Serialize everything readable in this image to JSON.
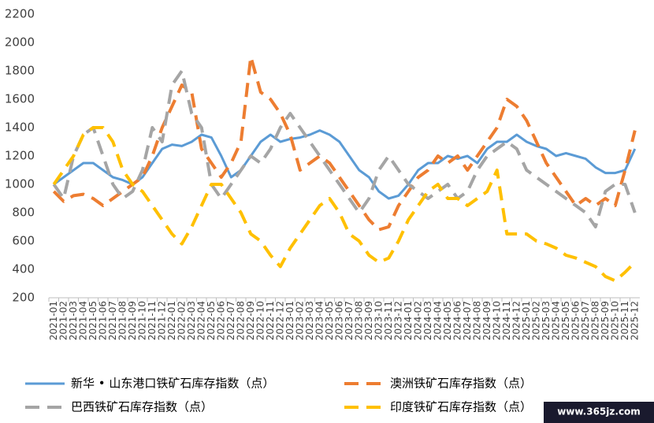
{
  "chart_data": {
    "type": "line",
    "categories": [
      "2021-01",
      "2021-02",
      "2021-03",
      "2021-04",
      "2021-05",
      "2021-06",
      "2021-07",
      "2021-08",
      "2021-09",
      "2021-10",
      "2021-11",
      "2021-12",
      "2022-01",
      "2022-02",
      "2022-03",
      "2022-04",
      "2022-05",
      "2022-06",
      "2022-07",
      "2022-08",
      "2022-09",
      "2022-10",
      "2022-11",
      "2022-12",
      "2023-01",
      "2023-02",
      "2023-03",
      "2023-04",
      "2023-05",
      "2023-06",
      "2023-07",
      "2023-08",
      "2023-09",
      "2023-10",
      "2023-11",
      "2023-12",
      "2024-01",
      "2024-02",
      "2024-03",
      "2024-04",
      "2024-05",
      "2024-06",
      "2024-07",
      "2024-08",
      "2024-09",
      "2024-10",
      "2024-11",
      "2024-12",
      "2025-01",
      "2025-02",
      "2025-03",
      "2025-04",
      "2025-05",
      "2025-06",
      "2025-07",
      "2025-08",
      "2025-09",
      "2025-10",
      "2025-11",
      "2025-12"
    ],
    "series": [
      {
        "name": "新华 • 山东港口铁矿石库存指数（点）",
        "color": "#5b9bd5",
        "line_style": "solid",
        "values": [
          1000,
          1050,
          1100,
          1150,
          1150,
          1100,
          1050,
          1030,
          1000,
          1050,
          1150,
          1250,
          1280,
          1270,
          1300,
          1350,
          1330,
          1200,
          1050,
          1100,
          1200,
          1300,
          1350,
          1300,
          1320,
          1330,
          1350,
          1380,
          1350,
          1300,
          1200,
          1100,
          1050,
          950,
          900,
          920,
          1000,
          1100,
          1150,
          1150,
          1200,
          1180,
          1200,
          1150,
          1250,
          1300,
          1300,
          1350,
          1300,
          1270,
          1250,
          1200,
          1220,
          1200,
          1180,
          1120,
          1080,
          1080,
          1100,
          1250
        ]
      },
      {
        "name": "澳洲铁矿石库存指数（点）",
        "color": "#ed7d31",
        "line_style": "dashed",
        "values": [
          950,
          880,
          920,
          930,
          900,
          850,
          900,
          950,
          1000,
          1050,
          1200,
          1400,
          1550,
          1700,
          1650,
          1250,
          1150,
          1050,
          1150,
          1300,
          1900,
          1650,
          1600,
          1500,
          1350,
          1100,
          1150,
          1200,
          1150,
          1050,
          950,
          850,
          750,
          680,
          700,
          850,
          950,
          1050,
          1100,
          1200,
          1150,
          1200,
          1100,
          1200,
          1300,
          1400,
          1600,
          1550,
          1450,
          1300,
          1150,
          1050,
          950,
          850,
          900,
          850,
          900,
          850,
          1100,
          1380
        ]
      },
      {
        "name": "巴西铁矿石库存指数（点）",
        "color": "#a5a5a5",
        "line_style": "dashed",
        "values": [
          1000,
          900,
          1200,
          1350,
          1400,
          1200,
          1000,
          900,
          950,
          1100,
          1400,
          1300,
          1700,
          1800,
          1500,
          1400,
          1000,
          900,
          1000,
          1100,
          1200,
          1150,
          1250,
          1400,
          1500,
          1400,
          1300,
          1200,
          1100,
          1000,
          900,
          800,
          900,
          1100,
          1200,
          1100,
          1000,
          950,
          900,
          950,
          1000,
          900,
          950,
          1100,
          1200,
          1250,
          1300,
          1250,
          1100,
          1050,
          1000,
          950,
          900,
          850,
          800,
          700,
          950,
          1000,
          1000,
          800
        ]
      },
      {
        "name": "印度铁矿石库存指数（点）",
        "color": "#ffc000",
        "line_style": "dashed",
        "values": [
          1000,
          1100,
          1200,
          1350,
          1400,
          1400,
          1300,
          1100,
          1000,
          950,
          850,
          750,
          650,
          580,
          700,
          850,
          1000,
          1000,
          900,
          800,
          650,
          600,
          500,
          420,
          550,
          650,
          750,
          850,
          900,
          800,
          650,
          600,
          500,
          450,
          480,
          600,
          750,
          850,
          950,
          1000,
          900,
          900,
          850,
          900,
          950,
          1100,
          650,
          650,
          650,
          600,
          580,
          550,
          500,
          480,
          450,
          420,
          350,
          320,
          380,
          450
        ]
      }
    ],
    "ylim": [
      200,
      2200
    ],
    "yticks": [
      200,
      400,
      600,
      800,
      1000,
      1200,
      1400,
      1600,
      1800,
      2000,
      2200
    ],
    "grid": false,
    "legend": "bottom",
    "watermark": "www.365jz.com"
  }
}
